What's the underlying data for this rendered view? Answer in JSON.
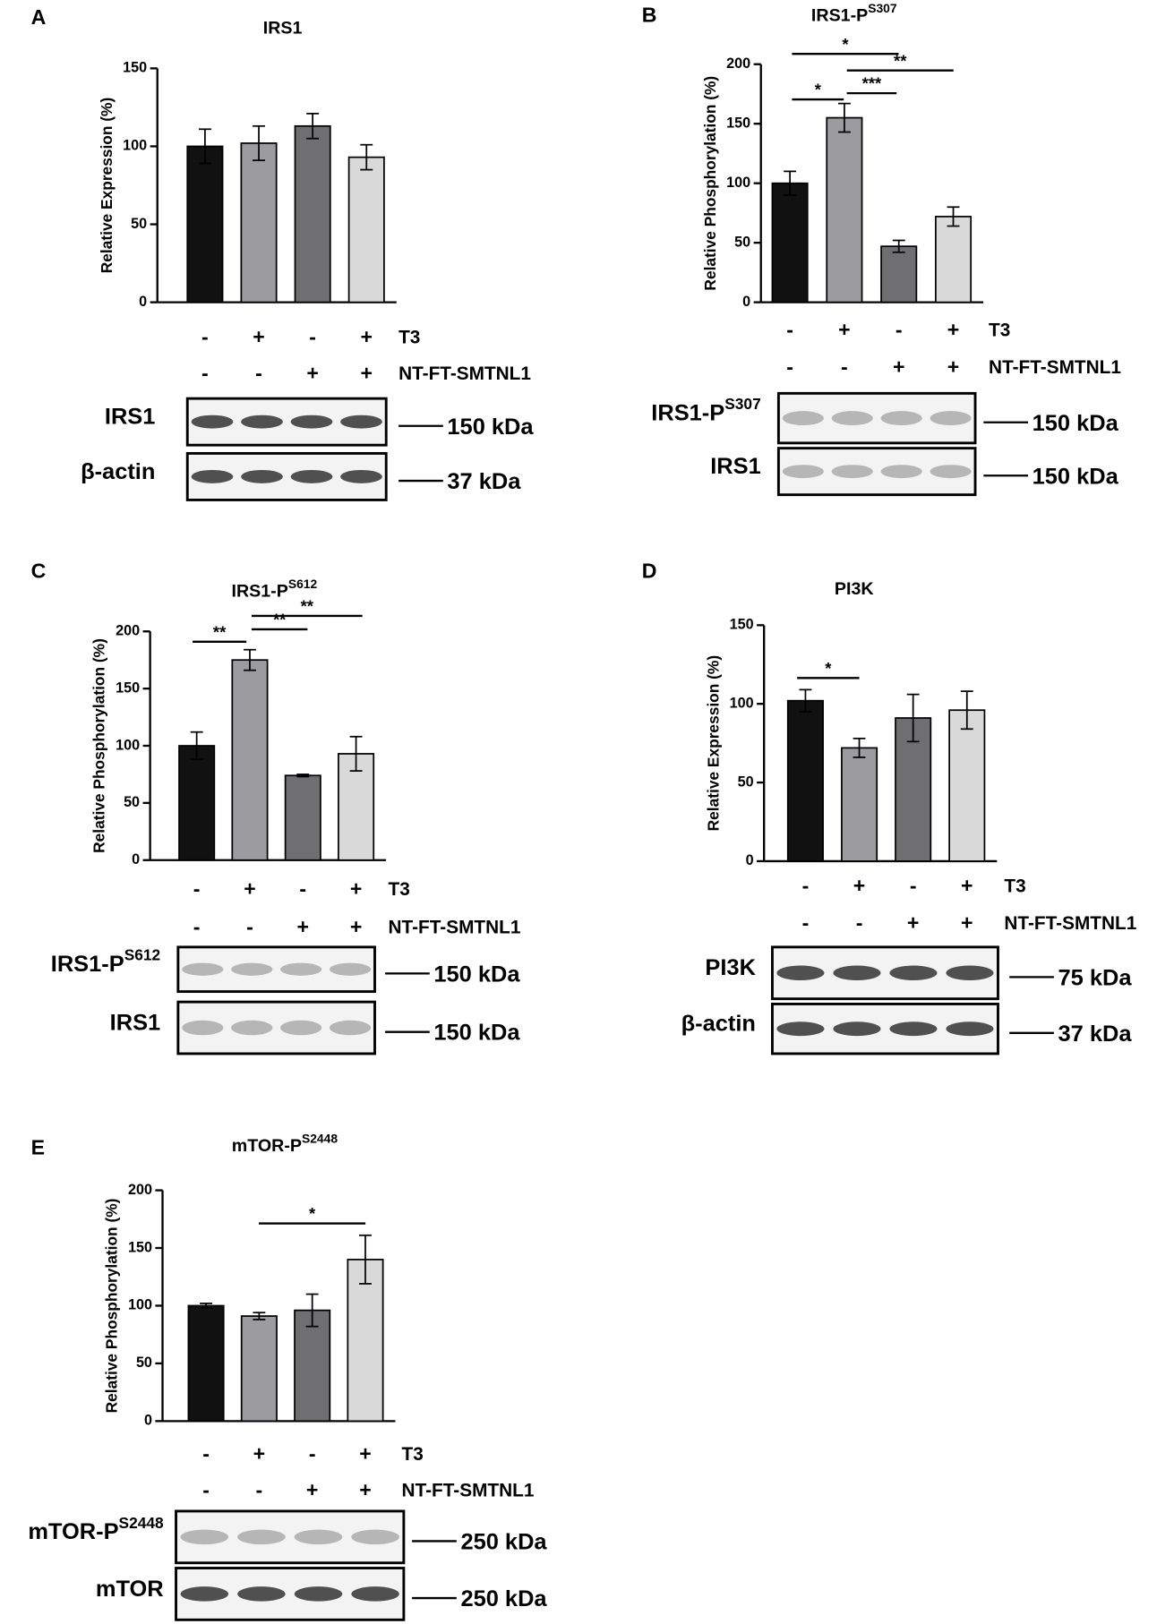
{
  "chart_data": [
    {
      "type": "bar",
      "panel": "A",
      "title": "IRS1",
      "ylabel": "Relative Expression (%)",
      "categories": [
        null,
        null,
        null,
        null
      ],
      "values": [
        100,
        102,
        113,
        93
      ],
      "errors": [
        11,
        11,
        8,
        8
      ],
      "colors": [
        "#111111",
        "#9b9ba0",
        "#6f6f72",
        "#d9d9d9"
      ],
      "ylim": [
        0,
        150
      ],
      "yticks": [
        0,
        50,
        100,
        150
      ],
      "annotations": [],
      "conditions": [
        {
          "name": "T3",
          "values": [
            "-",
            "+",
            "-",
            "+"
          ]
        },
        {
          "name": "NT-FT-SMTNL1",
          "values": [
            "-",
            "-",
            "+",
            "+"
          ]
        }
      ],
      "blots": [
        {
          "label": "IRS1",
          "kda": "150 kDa"
        },
        {
          "label": "β-actin",
          "kda": "37 kDa"
        }
      ]
    },
    {
      "type": "bar",
      "panel": "B",
      "title": "IRS1-P",
      "title_sup": "S307",
      "ylabel": "Relative Phosphorylation (%)",
      "categories": [
        null,
        null,
        null,
        null
      ],
      "values": [
        100,
        155,
        47,
        72
      ],
      "errors": [
        10,
        12,
        5,
        8
      ],
      "colors": [
        "#111111",
        "#9b9ba0",
        "#6f6f72",
        "#d9d9d9"
      ],
      "ylim": [
        0,
        200
      ],
      "yticks": [
        0,
        50,
        100,
        150,
        200
      ],
      "annotations": [
        {
          "from": 0,
          "to": 1,
          "label": "*"
        },
        {
          "from": 0,
          "to": 2,
          "label": "*"
        },
        {
          "from": 1,
          "to": 2,
          "label": "***"
        },
        {
          "from": 1,
          "to": 3,
          "label": "**"
        }
      ],
      "conditions": [
        {
          "name": "T3",
          "values": [
            "-",
            "+",
            "-",
            "+"
          ]
        },
        {
          "name": "NT-FT-SMTNL1",
          "values": [
            "-",
            "-",
            "+",
            "+"
          ]
        }
      ],
      "blots": [
        {
          "label": "IRS1-P",
          "label_sup": "S307",
          "kda": "150 kDa"
        },
        {
          "label": "IRS1",
          "kda": "150 kDa"
        }
      ]
    },
    {
      "type": "bar",
      "panel": "C",
      "title": "IRS1-P",
      "title_sup": "S612",
      "ylabel": "Relative Phosphorylation (%)",
      "categories": [
        null,
        null,
        null,
        null
      ],
      "values": [
        100,
        175,
        74,
        93
      ],
      "errors": [
        12,
        9,
        1,
        15
      ],
      "colors": [
        "#111111",
        "#9b9ba0",
        "#6f6f72",
        "#d9d9d9"
      ],
      "ylim": [
        0,
        200
      ],
      "yticks": [
        0,
        50,
        100,
        150,
        200
      ],
      "annotations": [
        {
          "from": 0,
          "to": 1,
          "label": "**"
        },
        {
          "from": 1,
          "to": 2,
          "label": "**"
        },
        {
          "from": 1,
          "to": 3,
          "label": "**"
        }
      ],
      "conditions": [
        {
          "name": "T3",
          "values": [
            "-",
            "+",
            "-",
            "+"
          ]
        },
        {
          "name": "NT-FT-SMTNL1",
          "values": [
            "-",
            "-",
            "+",
            "+"
          ]
        }
      ],
      "blots": [
        {
          "label": "IRS1-P",
          "label_sup": "S612",
          "kda": "150 kDa"
        },
        {
          "label": "IRS1",
          "kda": "150 kDa"
        }
      ]
    },
    {
      "type": "bar",
      "panel": "D",
      "title": "PI3K",
      "ylabel": "Relative Expression (%)",
      "categories": [
        null,
        null,
        null,
        null
      ],
      "values": [
        102,
        72,
        91,
        96
      ],
      "errors": [
        7,
        6,
        15,
        12
      ],
      "colors": [
        "#111111",
        "#9b9ba0",
        "#6f6f72",
        "#d9d9d9"
      ],
      "ylim": [
        0,
        150
      ],
      "yticks": [
        0,
        50,
        100,
        150
      ],
      "annotations": [
        {
          "from": 0,
          "to": 1,
          "label": "*"
        }
      ],
      "conditions": [
        {
          "name": "T3",
          "values": [
            "-",
            "+",
            "-",
            "+"
          ]
        },
        {
          "name": "NT-FT-SMTNL1",
          "values": [
            "-",
            "-",
            "+",
            "+"
          ]
        }
      ],
      "blots": [
        {
          "label": "PI3K",
          "kda": "75 kDa"
        },
        {
          "label": "β-actin",
          "kda": "37 kDa"
        }
      ]
    },
    {
      "type": "bar",
      "panel": "E",
      "title": "mTOR-P",
      "title_sup": "S2448",
      "ylabel": "Relative Phosphorylation (%)",
      "categories": [
        null,
        null,
        null,
        null
      ],
      "values": [
        100,
        91,
        96,
        140
      ],
      "errors": [
        2,
        3,
        14,
        21
      ],
      "colors": [
        "#111111",
        "#9b9ba0",
        "#6f6f72",
        "#d9d9d9"
      ],
      "ylim": [
        0,
        200
      ],
      "yticks": [
        0,
        50,
        100,
        150,
        200
      ],
      "annotations": [
        {
          "from": 1,
          "to": 3,
          "label": "*"
        }
      ],
      "conditions": [
        {
          "name": "T3",
          "values": [
            "-",
            "+",
            "-",
            "+"
          ]
        },
        {
          "name": "NT-FT-SMTNL1",
          "values": [
            "-",
            "-",
            "+",
            "+"
          ]
        }
      ],
      "blots": [
        {
          "label": "mTOR-P",
          "label_sup": "S2448",
          "kda": "250 kDa"
        },
        {
          "label": "mTOR",
          "kda": "250 kDa"
        }
      ]
    }
  ]
}
